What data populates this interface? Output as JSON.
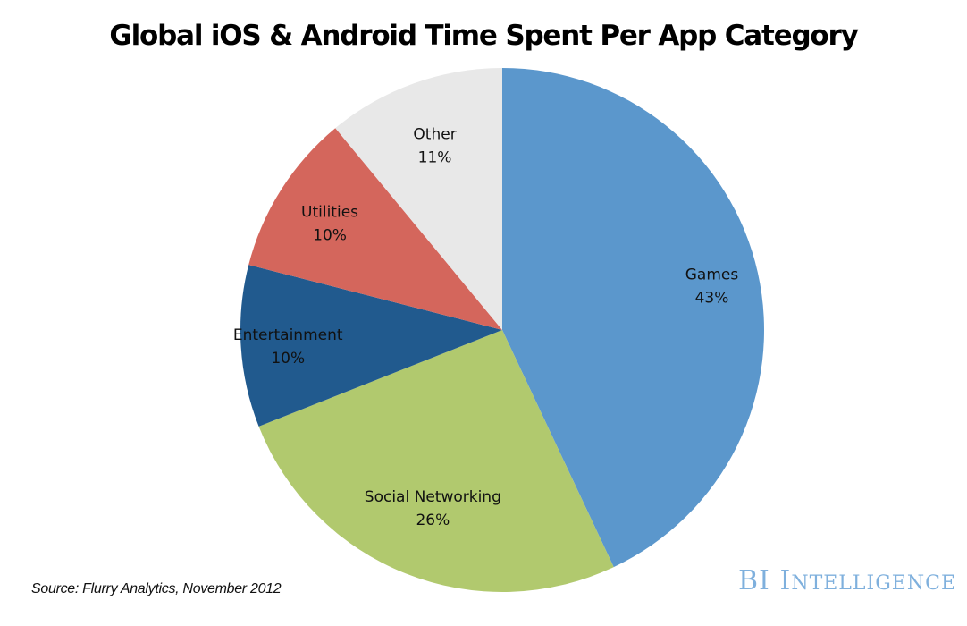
{
  "chart_data": {
    "type": "pie",
    "title": "Global iOS & Android Time Spent Per App Category",
    "start": "top, clockwise",
    "slices": [
      {
        "label": "Games",
        "value": 43,
        "value_label": "43%",
        "color": "#5b97cc"
      },
      {
        "label": "Social Networking",
        "value": 26,
        "value_label": "26%",
        "color": "#b1c96e"
      },
      {
        "label": "Entertainment",
        "value": 10,
        "value_label": "10%",
        "color": "#215a8e"
      },
      {
        "label": "Utilities",
        "value": 10,
        "value_label": "10%",
        "color": "#d4665c"
      },
      {
        "label": "Other",
        "value": 11,
        "value_label": "11%",
        "color": "#e8e8e8"
      }
    ],
    "legend": "none (data labels on slices)"
  },
  "footer": {
    "source": "Source: Flurry Analytics, November 2012",
    "brand_main": "BI",
    "brand_sub": "Intelligence",
    "brand_color": "#7fb0dd"
  }
}
